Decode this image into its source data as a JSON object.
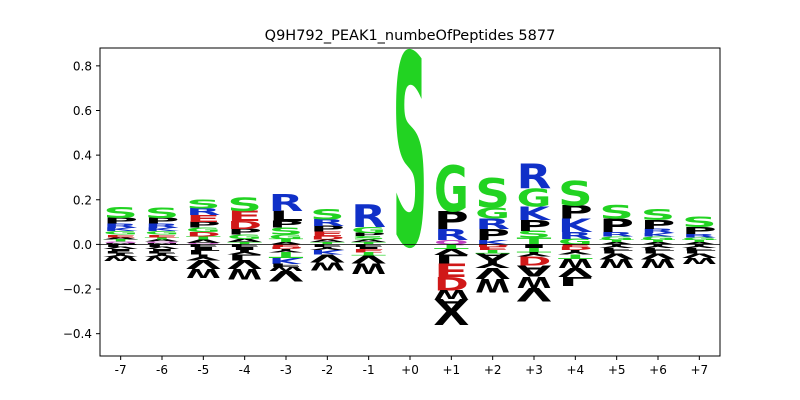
{
  "chart_data": {
    "type": "sequence-logo",
    "title": "Q9H792_PEAK1_numbeOfPeptides 5877",
    "xlabel": "",
    "ylabel": "",
    "ylim": [
      -0.5,
      0.88
    ],
    "yticks": [
      -0.4,
      -0.2,
      0.0,
      0.2,
      0.4,
      0.6,
      0.8
    ],
    "ytick_labels": [
      "−0.4",
      "−0.2",
      "0.0",
      "0.2",
      "0.4",
      "0.6",
      "0.8"
    ],
    "positions": [
      "-7",
      "-6",
      "-5",
      "-4",
      "-3",
      "-2",
      "-1",
      "+0",
      "+1",
      "+2",
      "+3",
      "+4",
      "+5",
      "+6",
      "+7"
    ],
    "colors": {
      "S": "#22d322",
      "G": "#22d322",
      "T": "#22d322",
      "R": "#1030c8",
      "K": "#1030c8",
      "H": "#1030c8",
      "E": "#d01818",
      "D": "#d01818",
      "P": "#000000",
      "A": "#000000",
      "V": "#000000",
      "L": "#000000",
      "I": "#000000",
      "M": "#000000",
      "F": "#000000",
      "W": "#000000",
      "Y": "#000000",
      "C": "#000000",
      "Q": "#c040c0",
      "N": "#c040c0",
      "other": "#000000"
    },
    "stacks": [
      {
        "pos": "-7",
        "up": [
          [
            "M",
            0.006
          ],
          [
            "Q",
            0.006
          ],
          [
            "T",
            0.01
          ],
          [
            "A",
            0.01
          ],
          [
            "E",
            0.012
          ],
          [
            "G",
            0.015
          ],
          [
            "K",
            0.015
          ],
          [
            "R",
            0.02
          ],
          [
            "P",
            0.025
          ],
          [
            "S",
            0.05
          ]
        ],
        "down": [
          [
            "L",
            0.01
          ],
          [
            "V",
            0.01
          ],
          [
            "I",
            0.01
          ],
          [
            "F",
            0.01
          ],
          [
            "Y",
            0.015
          ],
          [
            "W",
            0.02
          ]
        ]
      },
      {
        "pos": "-6",
        "up": [
          [
            "M",
            0.006
          ],
          [
            "Q",
            0.006
          ],
          [
            "A",
            0.01
          ],
          [
            "T",
            0.01
          ],
          [
            "E",
            0.012
          ],
          [
            "G",
            0.015
          ],
          [
            "K",
            0.015
          ],
          [
            "R",
            0.02
          ],
          [
            "P",
            0.025
          ],
          [
            "S",
            0.045
          ]
        ],
        "down": [
          [
            "L",
            0.01
          ],
          [
            "V",
            0.01
          ],
          [
            "I",
            0.01
          ],
          [
            "F",
            0.01
          ],
          [
            "Y",
            0.015
          ],
          [
            "W",
            0.02
          ]
        ]
      },
      {
        "pos": "-5",
        "up": [
          [
            "Q",
            0.006
          ],
          [
            "A",
            0.015
          ],
          [
            "T",
            0.015
          ],
          [
            "D",
            0.02
          ],
          [
            "G",
            0.02
          ],
          [
            "P",
            0.025
          ],
          [
            "E",
            0.03
          ],
          [
            "R",
            0.03
          ],
          [
            "S",
            0.04
          ]
        ],
        "down": [
          [
            "F",
            0.01
          ],
          [
            "I",
            0.015
          ],
          [
            "L",
            0.02
          ],
          [
            "Y",
            0.025
          ],
          [
            "V",
            0.04
          ],
          [
            "W",
            0.04
          ]
        ]
      },
      {
        "pos": "-4",
        "up": [
          [
            "T",
            0.01
          ],
          [
            "A",
            0.015
          ],
          [
            "G",
            0.02
          ],
          [
            "P",
            0.025
          ],
          [
            "D",
            0.035
          ],
          [
            "E",
            0.045
          ],
          [
            "S",
            0.06
          ]
        ],
        "down": [
          [
            "F",
            0.01
          ],
          [
            "I",
            0.015
          ],
          [
            "Y",
            0.02
          ],
          [
            "L",
            0.025
          ],
          [
            "V",
            0.04
          ],
          [
            "W",
            0.045
          ]
        ]
      },
      {
        "pos": "-3",
        "up": [
          [
            "A",
            0.01
          ],
          [
            "T",
            0.015
          ],
          [
            "G",
            0.02
          ],
          [
            "S",
            0.03
          ],
          [
            "P",
            0.03
          ],
          [
            "L",
            0.045
          ],
          [
            "R",
            0.075
          ]
        ],
        "down": [
          [
            "E",
            0.01
          ],
          [
            "D",
            0.01
          ],
          [
            "Y",
            0.015
          ],
          [
            "T",
            0.025
          ],
          [
            "K",
            0.025
          ],
          [
            "F",
            0.015
          ],
          [
            "W",
            0.02
          ],
          [
            "V",
            0.045
          ]
        ]
      },
      {
        "pos": "-2",
        "up": [
          [
            "T",
            0.01
          ],
          [
            "A",
            0.012
          ],
          [
            "D",
            0.015
          ],
          [
            "E",
            0.02
          ],
          [
            "P",
            0.025
          ],
          [
            "R",
            0.03
          ],
          [
            "S",
            0.045
          ]
        ],
        "down": [
          [
            "F",
            0.01
          ],
          [
            "Y",
            0.015
          ],
          [
            "K",
            0.02
          ],
          [
            "V",
            0.035
          ],
          [
            "W",
            0.035
          ]
        ]
      },
      {
        "pos": "-1",
        "up": [
          [
            "T",
            0.01
          ],
          [
            "A",
            0.012
          ],
          [
            "S",
            0.015
          ],
          [
            "P",
            0.015
          ],
          [
            "G",
            0.025
          ],
          [
            "R",
            0.1
          ]
        ],
        "down": [
          [
            "F",
            0.01
          ],
          [
            "I",
            0.01
          ],
          [
            "E",
            0.015
          ],
          [
            "T",
            0.015
          ],
          [
            "V",
            0.035
          ],
          [
            "W",
            0.045
          ]
        ]
      },
      {
        "pos": "+0",
        "up": [
          [
            "S",
            0.85
          ]
        ],
        "down": []
      },
      {
        "pos": "+1",
        "up": [
          [
            "Q",
            0.02
          ],
          [
            "R",
            0.05
          ],
          [
            "P",
            0.08
          ],
          [
            "G",
            0.2
          ]
        ],
        "down": [
          [
            "T",
            0.02
          ],
          [
            "V",
            0.025
          ],
          [
            "L",
            0.04
          ],
          [
            "E",
            0.06
          ],
          [
            "D",
            0.06
          ],
          [
            "W",
            0.04
          ],
          [
            "A",
            0.055
          ],
          [
            "V",
            0.06
          ]
        ]
      },
      {
        "pos": "+2",
        "up": [
          [
            "K",
            0.02
          ],
          [
            "P",
            0.05
          ],
          [
            "R",
            0.045
          ],
          [
            "G",
            0.05
          ],
          [
            "S",
            0.13
          ]
        ],
        "down": [
          [
            "D",
            0.01
          ],
          [
            "E",
            0.015
          ],
          [
            "T",
            0.015
          ],
          [
            "A",
            0.03
          ],
          [
            "Y",
            0.035
          ],
          [
            "V",
            0.05
          ],
          [
            "W",
            0.06
          ]
        ]
      },
      {
        "pos": "+3",
        "up": [
          [
            "T",
            0.03
          ],
          [
            "S",
            0.03
          ],
          [
            "P",
            0.05
          ],
          [
            "K",
            0.06
          ],
          [
            "G",
            0.08
          ],
          [
            "R",
            0.11
          ]
        ],
        "down": [
          [
            "I",
            0.015
          ],
          [
            "T",
            0.02
          ],
          [
            "Y",
            0.02
          ],
          [
            "D",
            0.04
          ],
          [
            "A",
            0.05
          ],
          [
            "W",
            0.05
          ],
          [
            "V",
            0.06
          ]
        ]
      },
      {
        "pos": "+4",
        "up": [
          [
            "G",
            0.025
          ],
          [
            "R",
            0.03
          ],
          [
            "K",
            0.06
          ],
          [
            "P",
            0.06
          ],
          [
            "S",
            0.11
          ]
        ],
        "down": [
          [
            "E",
            0.01
          ],
          [
            "D",
            0.015
          ],
          [
            "Y",
            0.02
          ],
          [
            "T",
            0.02
          ],
          [
            "W",
            0.04
          ],
          [
            "V",
            0.04
          ],
          [
            "L",
            0.04
          ]
        ]
      },
      {
        "pos": "+5",
        "up": [
          [
            "A",
            0.01
          ],
          [
            "T",
            0.01
          ],
          [
            "G",
            0.015
          ],
          [
            "R",
            0.02
          ],
          [
            "P",
            0.06
          ],
          [
            "S",
            0.06
          ]
        ],
        "down": [
          [
            "Y",
            0.015
          ],
          [
            "F",
            0.01
          ],
          [
            "L",
            0.015
          ],
          [
            "V",
            0.025
          ],
          [
            "W",
            0.04
          ]
        ]
      },
      {
        "pos": "+6",
        "up": [
          [
            "A",
            0.01
          ],
          [
            "T",
            0.01
          ],
          [
            "G",
            0.015
          ],
          [
            "K",
            0.015
          ],
          [
            "R",
            0.02
          ],
          [
            "P",
            0.04
          ],
          [
            "S",
            0.05
          ]
        ],
        "down": [
          [
            "Y",
            0.015
          ],
          [
            "F",
            0.01
          ],
          [
            "L",
            0.015
          ],
          [
            "V",
            0.025
          ],
          [
            "W",
            0.04
          ]
        ]
      },
      {
        "pos": "+7",
        "up": [
          [
            "A",
            0.01
          ],
          [
            "T",
            0.01
          ],
          [
            "G",
            0.012
          ],
          [
            "R",
            0.015
          ],
          [
            "P",
            0.03
          ],
          [
            "S",
            0.045
          ]
        ],
        "down": [
          [
            "Y",
            0.015
          ],
          [
            "F",
            0.01
          ],
          [
            "L",
            0.015
          ],
          [
            "V",
            0.02
          ],
          [
            "W",
            0.025
          ]
        ]
      }
    ]
  }
}
